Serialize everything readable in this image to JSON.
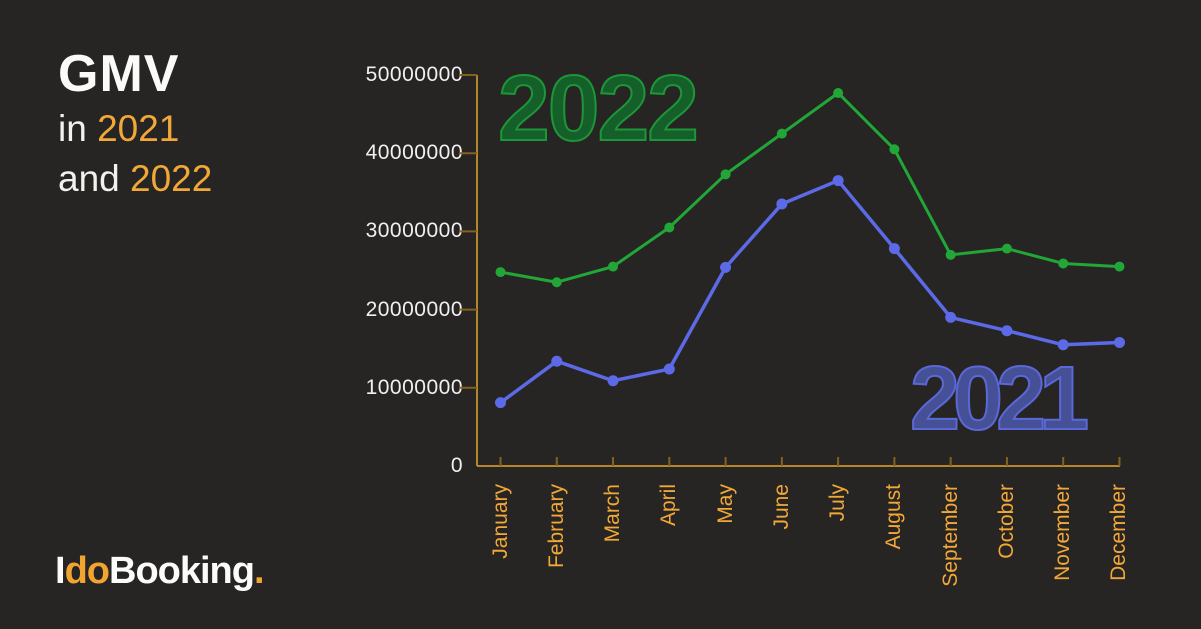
{
  "title": {
    "heading": "GMV",
    "line1_prefix": "in ",
    "line1_year": "2021",
    "line2_prefix": "and ",
    "line2_year": "2022"
  },
  "watermarks": {
    "year_2022": "2022",
    "year_2021": "2021"
  },
  "logo": {
    "part1": "I",
    "part2": "do",
    "part3": "Booking",
    "dot": "."
  },
  "colors": {
    "background": "#262523",
    "accent_orange": "#f2a838",
    "series_2022_green": "#21a637",
    "series_2021_blue": "#5c6ae8",
    "axis_gold": "#b5862b",
    "tick_gold_dark": "#84611f",
    "ytick_text": "#f0f0ee"
  },
  "chart_data": {
    "type": "line",
    "title": "GMV in 2021 and 2022",
    "xlabel": "",
    "ylabel": "",
    "grid": false,
    "legend_position": "watermark-inline",
    "categories": [
      "January",
      "February",
      "March",
      "April",
      "May",
      "June",
      "July",
      "August",
      "September",
      "October",
      "November",
      "December"
    ],
    "yticks": [
      "0",
      "10000000",
      "20000000",
      "30000000",
      "40000000",
      "50000000"
    ],
    "ylim": [
      0,
      50000000
    ],
    "series": [
      {
        "name": "2022",
        "color": "#21a637",
        "line_width": 3,
        "point_radius": 5,
        "values": [
          24800000,
          23500000,
          25500000,
          30500000,
          37300000,
          42500000,
          47700000,
          40500000,
          27000000,
          27800000,
          25900000,
          25500000
        ]
      },
      {
        "name": "2021",
        "color": "#5c6ae8",
        "line_width": 3.5,
        "point_radius": 5.5,
        "values": [
          8100000,
          13400000,
          10900000,
          12400000,
          25400000,
          33500000,
          36500000,
          27800000,
          19000000,
          17300000,
          15500000,
          15800000
        ]
      }
    ]
  }
}
